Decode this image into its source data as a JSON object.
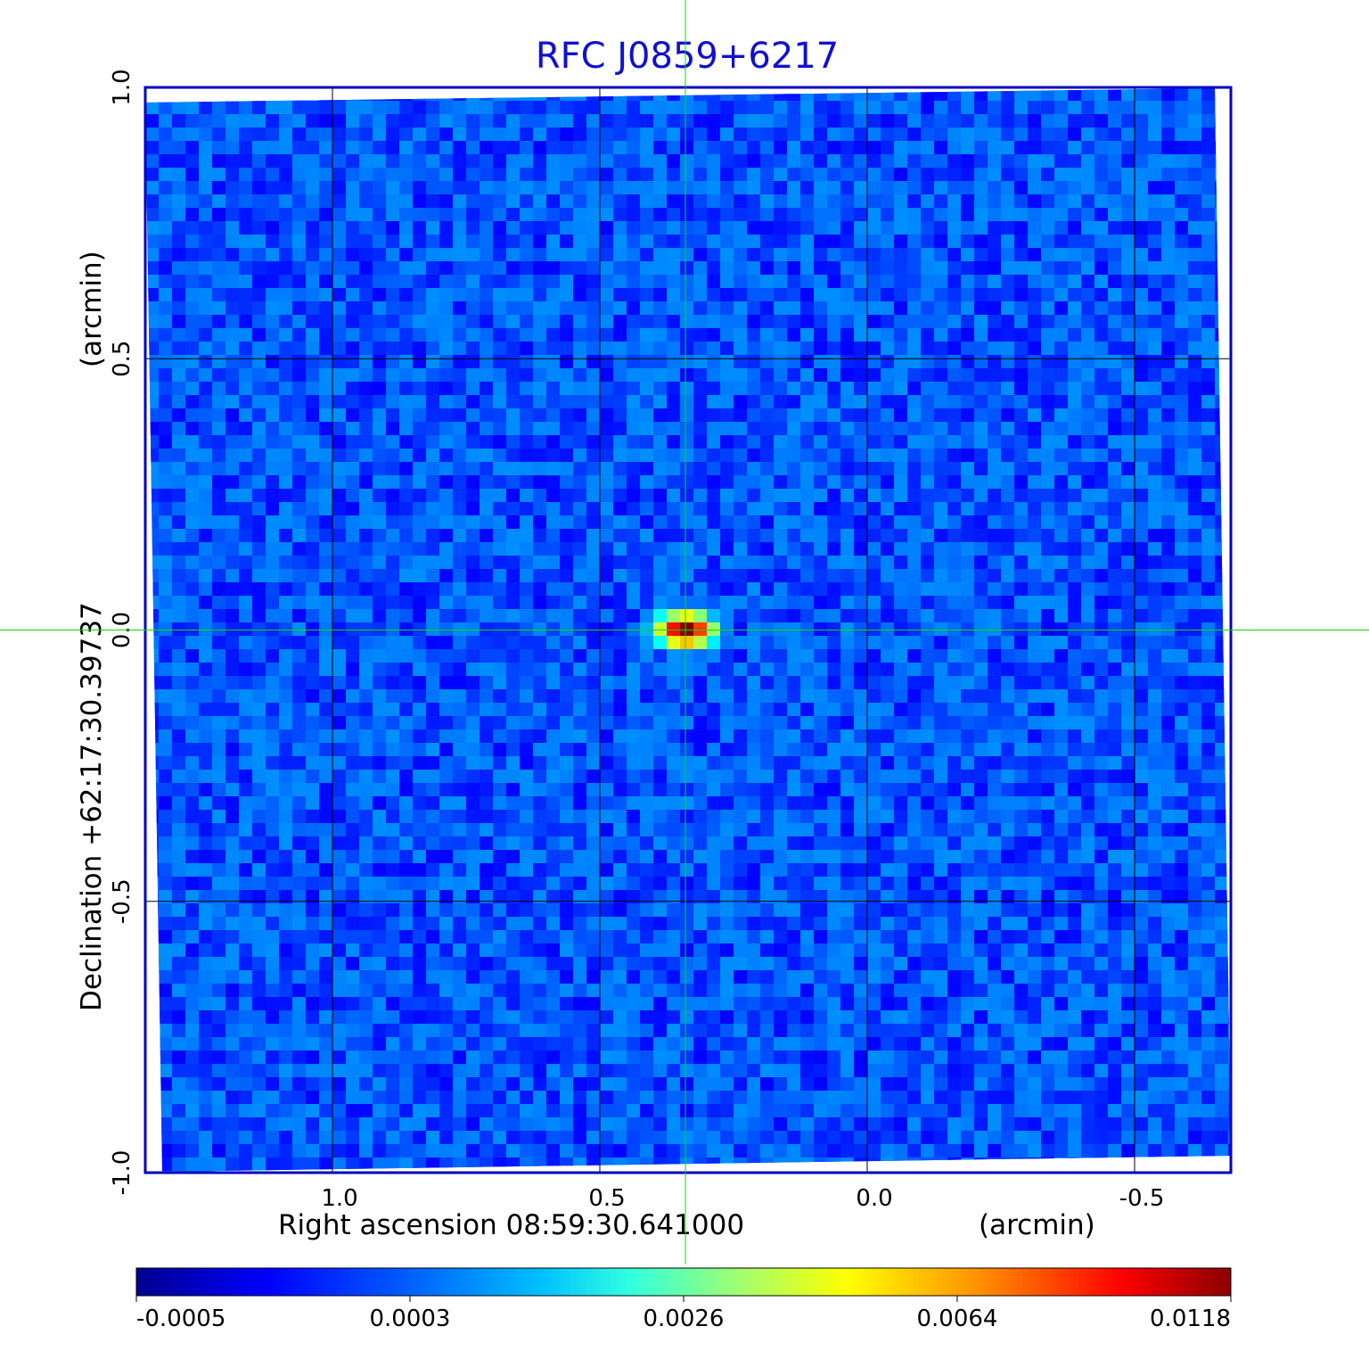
{
  "chart_data": {
    "type": "heatmap",
    "title": "RFC J0859+6217",
    "x_axis": {
      "label": "Right ascension  08:59:30.641000",
      "unit": "(arcmin)",
      "ticks": [
        1.0,
        0.5,
        0.0,
        -0.5
      ],
      "tick_labels": [
        "1.0",
        "0.5",
        "0.0",
        "-0.5"
      ],
      "range": [
        1.35,
        -0.68
      ],
      "reversed": true
    },
    "y_axis": {
      "label": "Declination  +62:17:30.39737",
      "unit": "(arcmin)",
      "ticks": [
        -1.0,
        -0.5,
        0.0,
        0.5,
        1.0
      ],
      "tick_labels": [
        "-1.0",
        "-0.5",
        "0.0",
        "0.5",
        "1.0"
      ],
      "range": [
        -1.0,
        1.0
      ]
    },
    "grid": true,
    "crosshair": {
      "x": 0.34,
      "y": 0.0,
      "color": "#00e000"
    },
    "colorbar": {
      "colormap": "jet",
      "tick_labels": [
        "-0.0005",
        "0.0003",
        "0.0026",
        "0.0064",
        "0.0118"
      ],
      "min": -0.0005,
      "max": 0.0118
    },
    "source_peak": {
      "x": 0.34,
      "y": 0.0,
      "value": 0.0118
    },
    "background_level": 0.0002
  },
  "colors": {
    "frame": "#0000c0",
    "title": "#1010d0",
    "crosshair": "#00e000",
    "grid": "#000000"
  }
}
